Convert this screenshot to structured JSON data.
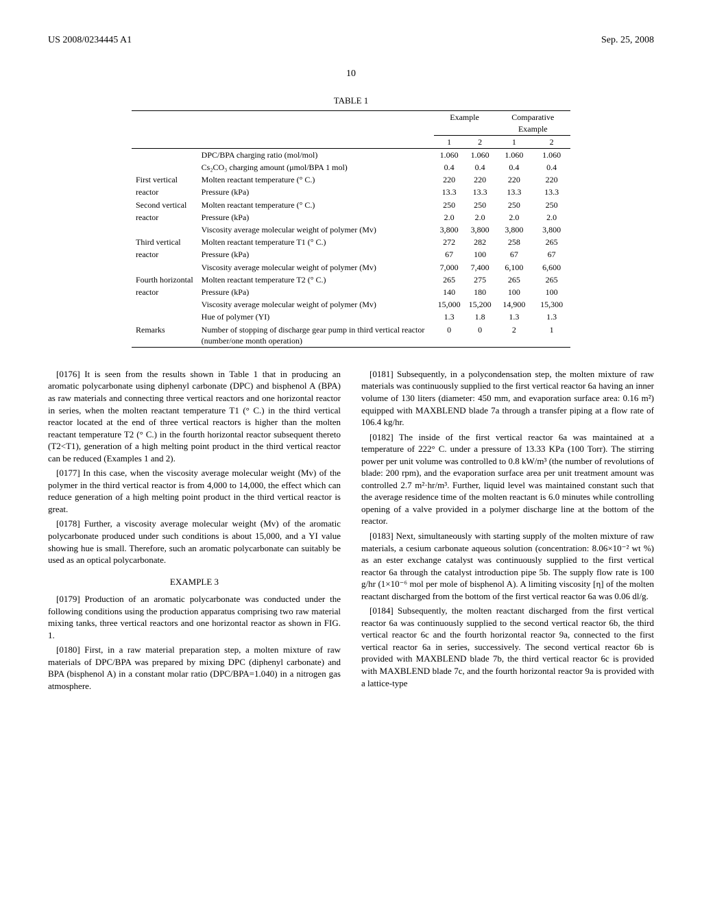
{
  "header": {
    "left": "US 2008/0234445 A1",
    "right": "Sep. 25, 2008"
  },
  "pagenum": "10",
  "table": {
    "caption": "TABLE 1",
    "group_headers": {
      "g1": "Example",
      "g2": "Comparative Example"
    },
    "col_headers": {
      "c1": "1",
      "c2": "2",
      "c3": "1",
      "c4": "2"
    },
    "rows": [
      {
        "label": "",
        "desc": "DPC/BPA charging ratio (mol/mol)",
        "v": [
          "1.060",
          "1.060",
          "1.060",
          "1.060"
        ]
      },
      {
        "label": "",
        "desc": "Cs₂CO₃ charging amount (μmol/BPA 1 mol)",
        "v": [
          "0.4",
          "0.4",
          "0.4",
          "0.4"
        ]
      },
      {
        "label": "First vertical",
        "desc": "Molten reactant temperature (° C.)",
        "v": [
          "220",
          "220",
          "220",
          "220"
        ]
      },
      {
        "label": "reactor",
        "desc": "Pressure (kPa)",
        "v": [
          "13.3",
          "13.3",
          "13.3",
          "13.3"
        ]
      },
      {
        "label": "Second vertical",
        "desc": "Molten reactant temperature (° C.)",
        "v": [
          "250",
          "250",
          "250",
          "250"
        ]
      },
      {
        "label": "reactor",
        "desc": "Pressure (kPa)",
        "v": [
          "2.0",
          "2.0",
          "2.0",
          "2.0"
        ]
      },
      {
        "label": "",
        "desc": "Viscosity average molecular weight of polymer (Mv)",
        "v": [
          "3,800",
          "3,800",
          "3,800",
          "3,800"
        ]
      },
      {
        "label": "Third vertical",
        "desc": "Molten reactant temperature T1 (° C.)",
        "v": [
          "272",
          "282",
          "258",
          "265"
        ]
      },
      {
        "label": "reactor",
        "desc": "Pressure (kPa)",
        "v": [
          "67",
          "100",
          "67",
          "67"
        ]
      },
      {
        "label": "",
        "desc": "Viscosity average molecular weight of polymer (Mv)",
        "v": [
          "7,000",
          "7,400",
          "6,100",
          "6,600"
        ]
      },
      {
        "label": "Fourth horizontal",
        "desc": "Molten reactant temperature T2 (° C.)",
        "v": [
          "265",
          "275",
          "265",
          "265"
        ]
      },
      {
        "label": "reactor",
        "desc": "Pressure (kPa)",
        "v": [
          "140",
          "180",
          "100",
          "100"
        ]
      },
      {
        "label": "",
        "desc": "Viscosity average molecular weight of polymer (Mv)",
        "v": [
          "15,000",
          "15,200",
          "14,900",
          "15,300"
        ]
      },
      {
        "label": "",
        "desc": "Hue of polymer (YI)",
        "v": [
          "1.3",
          "1.8",
          "1.3",
          "1.3"
        ]
      },
      {
        "label": "Remarks",
        "desc": "Number of stopping of discharge gear pump in third vertical reactor (number/one month operation)",
        "v": [
          "0",
          "0",
          "2",
          "1"
        ]
      }
    ]
  },
  "paras": {
    "p0176": "[0176]  It is seen from the results shown in Table 1 that in producing an aromatic polycarbonate using diphenyl carbonate (DPC) and bisphenol A (BPA) as raw materials and connecting three vertical reactors and one horizontal reactor in series, when the molten reactant temperature T1 (° C.) in the third vertical reactor located at the end of three vertical reactors is higher than the molten reactant temperature T2 (° C.) in the fourth horizontal reactor subsequent thereto (T2<T1), generation of a high melting point product in the third vertical reactor can be reduced (Examples 1 and 2).",
    "p0177": "[0177]  In this case, when the viscosity average molecular weight (Mv) of the polymer in the third vertical reactor is from 4,000 to 14,000, the effect which can reduce generation of a high melting point product in the third vertical reactor is great.",
    "p0178": "[0178]  Further, a viscosity average molecular weight (Mv) of the aromatic polycarbonate produced under such conditions is about 15,000, and a YI value showing hue is small. Therefore, such an aromatic polycarbonate can suitably be used as an optical polycarbonate.",
    "example3": "EXAMPLE 3",
    "p0179": "[0179]  Production of an aromatic polycarbonate was conducted under the following conditions using the production apparatus comprising two raw material mixing tanks, three vertical reactors and one horizontal reactor as shown in FIG. 1.",
    "p0180": "[0180]  First, in a raw material preparation step, a molten mixture of raw materials of DPC/BPA was prepared by mixing DPC (diphenyl carbonate) and BPA (bisphenol A) in a constant molar ratio (DPC/BPA=1.040) in a nitrogen gas atmosphere.",
    "p0181": "[0181]  Subsequently, in a polycondensation step, the molten mixture of raw materials was continuously supplied to the first vertical reactor 6a having an inner volume of 130 liters (diameter: 450 mm, and evaporation surface area: 0.16 m²) equipped with MAXBLEND blade 7a through a transfer piping at a flow rate of 106.4 kg/hr.",
    "p0182": "[0182]  The inside of the first vertical reactor 6a was maintained at a temperature of 222° C. under a pressure of 13.33 KPa (100 Torr). The stirring power per unit volume was controlled to 0.8 kW/m³ (the number of revolutions of blade: 200 rpm), and the evaporation surface area per unit treatment amount was controlled 2.7 m²·hr/m³. Further, liquid level was maintained constant such that the average residence time of the molten reactant is 6.0 minutes while controlling opening of a valve provided in a polymer discharge line at the bottom of the reactor.",
    "p0183": "[0183]  Next, simultaneously with starting supply of the molten mixture of raw materials, a cesium carbonate aqueous solution (concentration: 8.06×10⁻² wt %) as an ester exchange catalyst was continuously supplied to the first vertical reactor 6a through the catalyst introduction pipe 5b. The supply flow rate is 100 g/hr (1×10⁻⁶ mol per mole of bisphenol A). A limiting viscosity [η] of the molten reactant discharged from the bottom of the first vertical reactor 6a was 0.06 dl/g.",
    "p0184": "[0184]  Subsequently, the molten reactant discharged from the first vertical reactor 6a was continuously supplied to the second vertical reactor 6b, the third vertical reactor 6c and the fourth horizontal reactor 9a, connected to the first vertical reactor 6a in series, successively. The second vertical reactor 6b is provided with MAXBLEND blade 7b, the third vertical reactor 6c is provided with MAXBLEND blade 7c, and the fourth horizontal reactor 9a is provided with a lattice-type"
  }
}
